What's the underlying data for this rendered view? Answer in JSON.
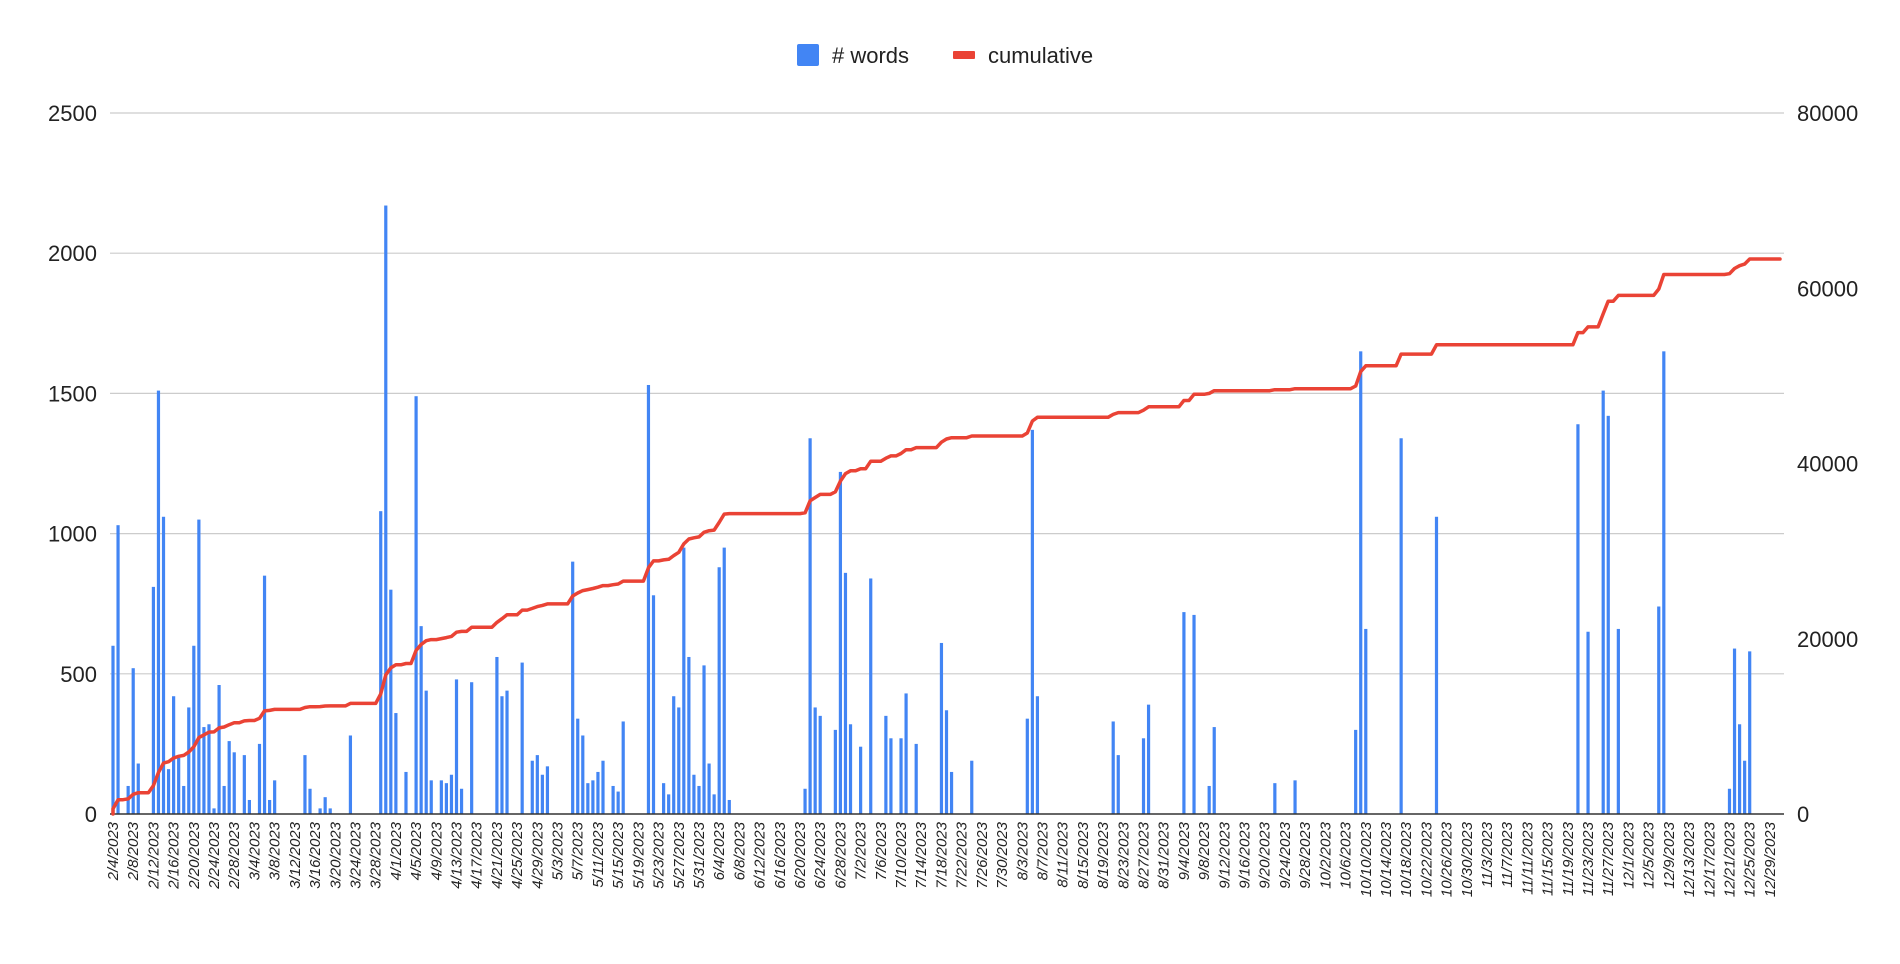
{
  "chart_data": {
    "type": "bar+line",
    "start_date": "2023-02-04",
    "end_date": "2023-12-31",
    "legend": {
      "position": "top",
      "items": [
        {
          "label": "# words",
          "color": "#4285f4",
          "shape": "square"
        },
        {
          "label": "cumulative",
          "color": "#ea4335",
          "shape": "line"
        }
      ]
    },
    "y_left": {
      "min": 0,
      "max": 2500,
      "ticks": [
        "0",
        "500",
        "1000",
        "1500",
        "2000",
        "2500"
      ]
    },
    "y_right": {
      "min": 0,
      "max": 80000,
      "ticks": [
        "0",
        "20000",
        "40000",
        "60000",
        "80000"
      ]
    },
    "grid": true,
    "x_tick_labels": [
      "2/4/2023",
      "2/8/2023",
      "2/12/2023",
      "2/16/2023",
      "2/20/2023",
      "2/24/2023",
      "2/28/2023",
      "3/4/2023",
      "3/8/2023",
      "3/12/2023",
      "3/16/2023",
      "3/20/2023",
      "3/24/2023",
      "3/28/2023",
      "4/1/2023",
      "4/5/2023",
      "4/9/2023",
      "4/13/2023",
      "4/17/2023",
      "4/21/2023",
      "4/25/2023",
      "4/29/2023",
      "5/3/2023",
      "5/7/2023",
      "5/11/2023",
      "5/15/2023",
      "5/19/2023",
      "5/23/2023",
      "5/27/2023",
      "5/31/2023",
      "6/4/2023",
      "6/8/2023",
      "6/12/2023",
      "6/16/2023",
      "6/20/2023",
      "6/24/2023",
      "6/28/2023",
      "7/2/2023",
      "7/6/2023",
      "7/10/2023",
      "7/14/2023",
      "7/18/2023",
      "7/22/2023",
      "7/26/2023",
      "7/30/2023",
      "8/3/2023",
      "8/7/2023",
      "8/11/2023",
      "8/15/2023",
      "8/19/2023",
      "8/23/2023",
      "8/27/2023",
      "8/31/2023",
      "9/4/2023",
      "9/8/2023",
      "9/12/2023",
      "9/16/2023",
      "9/20/2023",
      "9/24/2023",
      "9/28/2023",
      "10/2/2023",
      "10/6/2023",
      "10/10/2023",
      "10/14/2023",
      "10/18/2023",
      "10/22/2023",
      "10/26/2023",
      "10/30/2023",
      "11/3/2023",
      "11/7/2023",
      "11/11/2023",
      "11/15/2023",
      "11/19/2023",
      "11/23/2023",
      "11/27/2023",
      "12/1/2023",
      "12/5/2023",
      "12/9/2023",
      "12/13/2023",
      "12/17/2023",
      "12/21/2023",
      "12/25/2023",
      "12/29/2023"
    ],
    "series": [
      {
        "name": "# words",
        "type": "bar",
        "axis": "left",
        "color": "#4285f4",
        "points": [
          [
            0,
            600
          ],
          [
            1,
            1030
          ],
          [
            3,
            100
          ],
          [
            4,
            520
          ],
          [
            5,
            180
          ],
          [
            8,
            810
          ],
          [
            9,
            1510
          ],
          [
            10,
            1060
          ],
          [
            11,
            160
          ],
          [
            12,
            420
          ],
          [
            13,
            200
          ],
          [
            14,
            100
          ],
          [
            15,
            380
          ],
          [
            16,
            600
          ],
          [
            17,
            1050
          ],
          [
            18,
            310
          ],
          [
            19,
            320
          ],
          [
            20,
            20
          ],
          [
            21,
            460
          ],
          [
            22,
            100
          ],
          [
            23,
            260
          ],
          [
            24,
            220
          ],
          [
            26,
            210
          ],
          [
            27,
            50
          ],
          [
            29,
            250
          ],
          [
            30,
            850
          ],
          [
            31,
            50
          ],
          [
            32,
            120
          ],
          [
            38,
            210
          ],
          [
            39,
            90
          ],
          [
            41,
            20
          ],
          [
            42,
            60
          ],
          [
            43,
            20
          ],
          [
            47,
            280
          ],
          [
            53,
            1080
          ],
          [
            54,
            2170
          ],
          [
            55,
            800
          ],
          [
            56,
            360
          ],
          [
            58,
            150
          ],
          [
            60,
            1490
          ],
          [
            61,
            670
          ],
          [
            62,
            440
          ],
          [
            63,
            120
          ],
          [
            65,
            120
          ],
          [
            66,
            110
          ],
          [
            67,
            140
          ],
          [
            68,
            480
          ],
          [
            69,
            90
          ],
          [
            71,
            470
          ],
          [
            76,
            560
          ],
          [
            77,
            420
          ],
          [
            78,
            440
          ],
          [
            81,
            540
          ],
          [
            83,
            190
          ],
          [
            84,
            210
          ],
          [
            85,
            140
          ],
          [
            86,
            170
          ],
          [
            91,
            900
          ],
          [
            92,
            340
          ],
          [
            93,
            280
          ],
          [
            94,
            110
          ],
          [
            95,
            120
          ],
          [
            96,
            150
          ],
          [
            97,
            190
          ],
          [
            99,
            100
          ],
          [
            100,
            80
          ],
          [
            101,
            330
          ],
          [
            106,
            1530
          ],
          [
            107,
            780
          ],
          [
            109,
            110
          ],
          [
            110,
            70
          ],
          [
            111,
            420
          ],
          [
            112,
            380
          ],
          [
            113,
            950
          ],
          [
            114,
            560
          ],
          [
            115,
            140
          ],
          [
            116,
            100
          ],
          [
            117,
            530
          ],
          [
            118,
            180
          ],
          [
            119,
            70
          ],
          [
            120,
            880
          ],
          [
            121,
            950
          ],
          [
            122,
            50
          ],
          [
            137,
            90
          ],
          [
            138,
            1340
          ],
          [
            139,
            380
          ],
          [
            140,
            350
          ],
          [
            143,
            300
          ],
          [
            144,
            1220
          ],
          [
            145,
            860
          ],
          [
            146,
            320
          ],
          [
            148,
            240
          ],
          [
            150,
            840
          ],
          [
            153,
            350
          ],
          [
            154,
            270
          ],
          [
            156,
            270
          ],
          [
            157,
            430
          ],
          [
            159,
            250
          ],
          [
            164,
            610
          ],
          [
            165,
            370
          ],
          [
            166,
            150
          ],
          [
            170,
            190
          ],
          [
            181,
            340
          ],
          [
            182,
            1370
          ],
          [
            183,
            420
          ],
          [
            198,
            330
          ],
          [
            199,
            210
          ],
          [
            204,
            270
          ],
          [
            205,
            390
          ],
          [
            212,
            720
          ],
          [
            214,
            710
          ],
          [
            217,
            100
          ],
          [
            218,
            310
          ],
          [
            230,
            110
          ],
          [
            234,
            120
          ],
          [
            246,
            300
          ],
          [
            247,
            1650
          ],
          [
            248,
            660
          ],
          [
            255,
            1340
          ],
          [
            262,
            1060
          ],
          [
            290,
            1390
          ],
          [
            292,
            650
          ],
          [
            295,
            1510
          ],
          [
            296,
            1420
          ],
          [
            298,
            660
          ],
          [
            306,
            740
          ],
          [
            307,
            1650
          ],
          [
            320,
            90
          ],
          [
            321,
            590
          ],
          [
            322,
            320
          ],
          [
            323,
            190
          ],
          [
            324,
            580
          ]
        ]
      },
      {
        "name": "cumulative",
        "type": "line",
        "axis": "right",
        "color": "#ea4335",
        "points": [
          [
            0,
            600
          ],
          [
            1,
            1630
          ],
          [
            3,
            1730
          ],
          [
            4,
            2250
          ],
          [
            5,
            2430
          ],
          [
            7,
            2430
          ],
          [
            8,
            3240
          ],
          [
            9,
            4750
          ],
          [
            10,
            5810
          ],
          [
            11,
            5970
          ],
          [
            12,
            6390
          ],
          [
            13,
            6590
          ],
          [
            14,
            6690
          ],
          [
            15,
            7070
          ],
          [
            16,
            7670
          ],
          [
            17,
            8720
          ],
          [
            18,
            9030
          ],
          [
            19,
            9350
          ],
          [
            20,
            9370
          ],
          [
            21,
            9830
          ],
          [
            22,
            9930
          ],
          [
            23,
            10190
          ],
          [
            24,
            10410
          ],
          [
            25,
            10410
          ],
          [
            26,
            10620
          ],
          [
            27,
            10670
          ],
          [
            29,
            10920
          ],
          [
            30,
            11770
          ],
          [
            31,
            11820
          ],
          [
            32,
            11940
          ],
          [
            38,
            12150
          ],
          [
            39,
            12240
          ],
          [
            41,
            12260
          ],
          [
            42,
            12320
          ],
          [
            43,
            12340
          ],
          [
            47,
            12620
          ],
          [
            53,
            13700
          ],
          [
            54,
            15870
          ],
          [
            55,
            16670
          ],
          [
            56,
            17030
          ],
          [
            58,
            17180
          ],
          [
            60,
            18670
          ],
          [
            61,
            19340
          ],
          [
            62,
            19780
          ],
          [
            63,
            19900
          ],
          [
            65,
            20020
          ],
          [
            66,
            20130
          ],
          [
            67,
            20270
          ],
          [
            68,
            20750
          ],
          [
            69,
            20840
          ],
          [
            71,
            21310
          ],
          [
            76,
            21870
          ],
          [
            77,
            22290
          ],
          [
            78,
            22730
          ],
          [
            81,
            23270
          ],
          [
            83,
            23460
          ],
          [
            84,
            23670
          ],
          [
            85,
            23810
          ],
          [
            86,
            23980
          ],
          [
            91,
            24880
          ],
          [
            92,
            25220
          ],
          [
            93,
            25500
          ],
          [
            94,
            25610
          ],
          [
            95,
            25730
          ],
          [
            96,
            25880
          ],
          [
            97,
            26070
          ],
          [
            99,
            26170
          ],
          [
            100,
            26250
          ],
          [
            101,
            26580
          ],
          [
            106,
            28110
          ],
          [
            107,
            28890
          ],
          [
            109,
            29000
          ],
          [
            110,
            29070
          ],
          [
            111,
            29490
          ],
          [
            112,
            29870
          ],
          [
            113,
            30820
          ],
          [
            114,
            31380
          ],
          [
            115,
            31520
          ],
          [
            116,
            31620
          ],
          [
            117,
            32150
          ],
          [
            118,
            32330
          ],
          [
            119,
            32400
          ],
          [
            120,
            33280
          ],
          [
            121,
            34230
          ],
          [
            122,
            34280
          ],
          [
            137,
            34370
          ],
          [
            138,
            35740
          ],
          [
            139,
            36120
          ],
          [
            140,
            36470
          ],
          [
            143,
            36770
          ],
          [
            144,
            37990
          ],
          [
            145,
            38850
          ],
          [
            146,
            39170
          ],
          [
            148,
            39410
          ],
          [
            150,
            40250
          ],
          [
            153,
            40600
          ],
          [
            154,
            40870
          ],
          [
            156,
            41140
          ],
          [
            157,
            41570
          ],
          [
            159,
            41820
          ],
          [
            164,
            42430
          ],
          [
            165,
            42800
          ],
          [
            166,
            42950
          ],
          [
            170,
            43140
          ],
          [
            181,
            43480
          ],
          [
            182,
            44850
          ],
          [
            183,
            45270
          ],
          [
            198,
            45600
          ],
          [
            199,
            45810
          ],
          [
            204,
            46080
          ],
          [
            205,
            46470
          ],
          [
            212,
            47190
          ],
          [
            214,
            47900
          ],
          [
            217,
            48000
          ],
          [
            218,
            48310
          ],
          [
            230,
            48420
          ],
          [
            234,
            48540
          ],
          [
            246,
            48840
          ],
          [
            247,
            50490
          ],
          [
            248,
            51150
          ],
          [
            255,
            52490
          ],
          [
            262,
            53550
          ],
          [
            290,
            54940
          ],
          [
            292,
            55590
          ],
          [
            295,
            57100
          ],
          [
            296,
            58520
          ],
          [
            298,
            59180
          ],
          [
            306,
            59920
          ],
          [
            307,
            61570
          ],
          [
            320,
            61660
          ],
          [
            321,
            62250
          ],
          [
            322,
            62570
          ],
          [
            323,
            62760
          ],
          [
            324,
            63340
          ],
          [
            330,
            63340
          ]
        ]
      }
    ]
  }
}
